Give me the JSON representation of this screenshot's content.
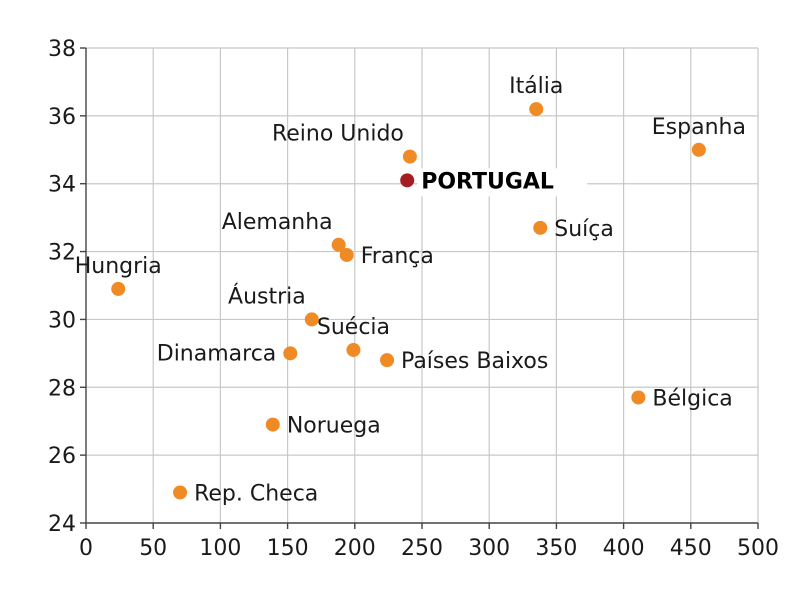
{
  "chart_data": {
    "type": "scatter",
    "title": "",
    "xlabel": "",
    "ylabel": "",
    "xlim": [
      0,
      500
    ],
    "ylim": [
      24,
      38
    ],
    "xticks": [
      0,
      50,
      100,
      150,
      200,
      250,
      300,
      350,
      400,
      450,
      500
    ],
    "yticks": [
      24,
      26,
      28,
      30,
      32,
      34,
      36,
      38
    ],
    "grid": true,
    "colors": {
      "point": "#F08A24",
      "highlight": "#A31D22",
      "grid": "#C8C8C8",
      "axis": "#444444"
    },
    "points": [
      {
        "label": "Itália",
        "x": 335,
        "y": 36.2,
        "label_pos": "above",
        "highlight": false
      },
      {
        "label": "Espanha",
        "x": 456,
        "y": 35.0,
        "label_pos": "above",
        "highlight": false
      },
      {
        "label": "Reino Unido",
        "x": 241,
        "y": 34.8,
        "label_pos": "above-left",
        "highlight": false
      },
      {
        "label": "PORTUGAL",
        "x": 239,
        "y": 34.1,
        "label_pos": "right",
        "highlight": true
      },
      {
        "label": "Suíça",
        "x": 338,
        "y": 32.7,
        "label_pos": "right",
        "highlight": false
      },
      {
        "label": "Alemanha",
        "x": 188,
        "y": 32.2,
        "label_pos": "above-left",
        "highlight": false
      },
      {
        "label": "França",
        "x": 194,
        "y": 31.9,
        "label_pos": "right",
        "highlight": false
      },
      {
        "label": "Hungria",
        "x": 24,
        "y": 30.9,
        "label_pos": "above",
        "highlight": false
      },
      {
        "label": "Áustria",
        "x": 168,
        "y": 30.0,
        "label_pos": "above-left",
        "highlight": false
      },
      {
        "label": "Suécia",
        "x": 199,
        "y": 29.1,
        "label_pos": "above",
        "highlight": false
      },
      {
        "label": "Dinamarca",
        "x": 152,
        "y": 29.0,
        "label_pos": "left",
        "highlight": false
      },
      {
        "label": "Países Baixos",
        "x": 224,
        "y": 28.8,
        "label_pos": "right",
        "highlight": false
      },
      {
        "label": "Bélgica",
        "x": 411,
        "y": 27.7,
        "label_pos": "right",
        "highlight": false
      },
      {
        "label": "Noruega",
        "x": 139,
        "y": 26.9,
        "label_pos": "right",
        "highlight": false
      },
      {
        "label": "Rep. Checa",
        "x": 70,
        "y": 24.9,
        "label_pos": "right",
        "highlight": false
      }
    ]
  }
}
